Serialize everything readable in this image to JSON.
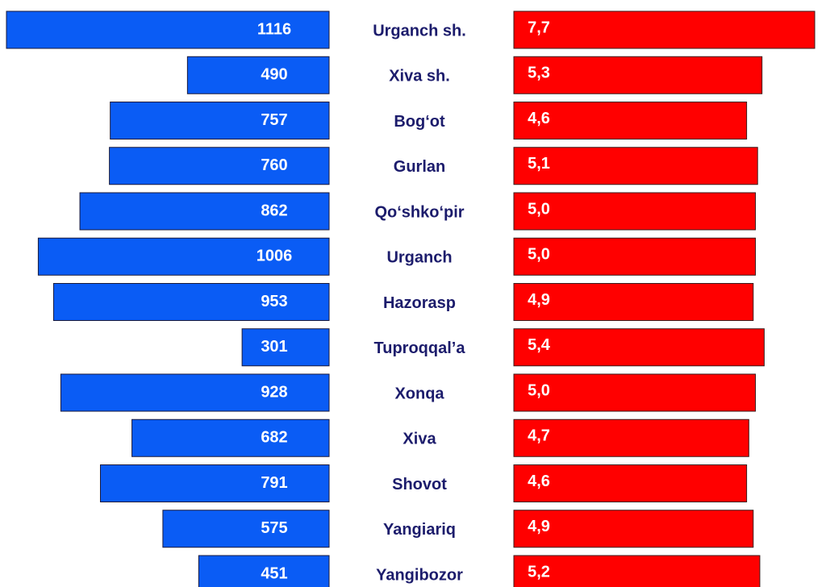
{
  "chart_data": {
    "type": "butterfly-bar",
    "categories": [
      "Urganch sh.",
      "Xiva sh.",
      "Bog‘ot",
      "Gurlan",
      "Qo‘shko‘pir",
      "Urganch",
      "Hazorasp",
      "Tuproqqal’a",
      "Xonqa",
      "Xiva",
      "Shovot",
      "Yangiariq",
      "Yangibozor"
    ],
    "xlim": [
      0,
      1116
    ],
    "x2lim": [
      -6,
      7.7
    ],
    "series": [
      {
        "color": "#0a5cf5",
        "values": [
          1116,
          490,
          757,
          760,
          862,
          1006,
          953,
          301,
          928,
          682,
          791,
          575,
          451
        ]
      },
      {
        "color": "#ff0000",
        "axis": "x2",
        "values": [
          7.7,
          5.3,
          4.6,
          5.1,
          5.0,
          5.0,
          4.9,
          5.4,
          5.0,
          4.7,
          4.6,
          4.9,
          5.2
        ],
        "value_labels": [
          "7,7",
          "5,3",
          "4,6",
          "5,1",
          "5,0",
          "5,0",
          "4,9",
          "5,4",
          "5,0",
          "4,7",
          "4,6",
          "4,9",
          "5,2"
        ]
      }
    ]
  }
}
